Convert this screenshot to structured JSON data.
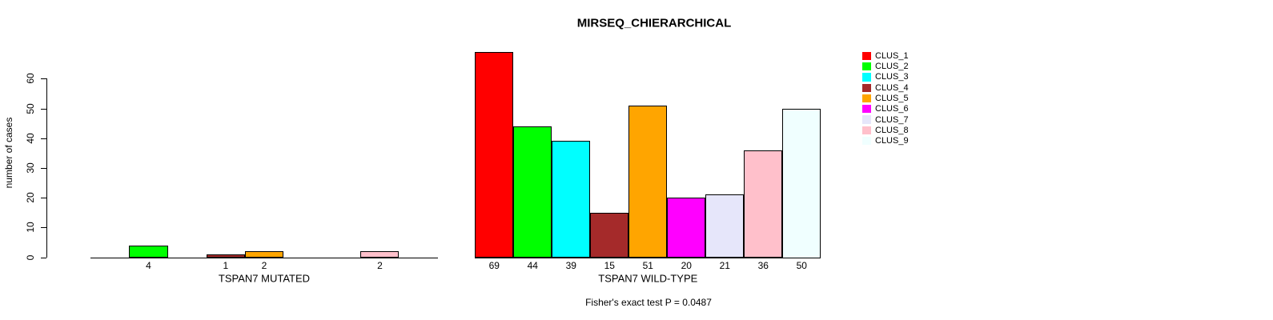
{
  "chart_data": {
    "type": "bar",
    "title": "MIRSEQ_CHIERARCHICAL",
    "ylabel": "number of cases",
    "ylim": [
      0,
      69
    ],
    "yticks": [
      0,
      10,
      20,
      30,
      40,
      50,
      60
    ],
    "grid": false,
    "legend_position": "right",
    "categories": [
      "CLUS_1",
      "CLUS_2",
      "CLUS_3",
      "CLUS_4",
      "CLUS_5",
      "CLUS_6",
      "CLUS_7",
      "CLUS_8",
      "CLUS_9"
    ],
    "colors": [
      "#FF0000",
      "#00FF00",
      "#00FFFF",
      "#A52A2A",
      "#FFA500",
      "#FF00FF",
      "#E6E6FA",
      "#FFC0CB",
      "#F0FFFF"
    ],
    "series": [
      {
        "name": "TSPAN7 MUTATED",
        "values": [
          0,
          4,
          0,
          1,
          2,
          0,
          0,
          2,
          0
        ]
      },
      {
        "name": "TSPAN7 WILD-TYPE",
        "values": [
          69,
          44,
          39,
          15,
          51,
          20,
          21,
          36,
          50
        ]
      }
    ],
    "bar_value_labels_shown": "nonzero only",
    "annotation": "Fisher's exact test P = 0.0487"
  }
}
